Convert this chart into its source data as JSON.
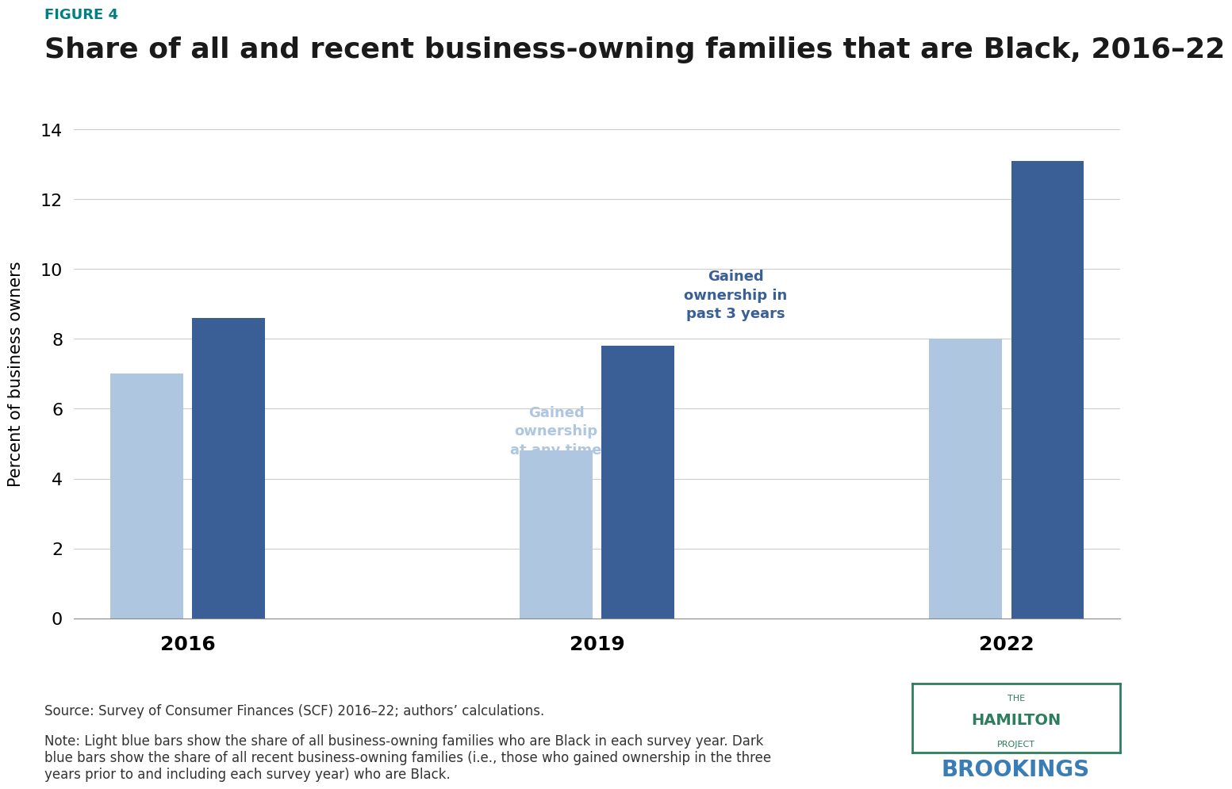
{
  "figure_label": "FIGURE 4",
  "title": "Share of all and recent business-owning families that are Black, 2016–22",
  "ylabel": "Percent of business owners",
  "years": [
    2016,
    2019,
    2022
  ],
  "light_blue_values": [
    7.0,
    4.8,
    8.0
  ],
  "dark_blue_values": [
    8.6,
    7.8,
    13.1
  ],
  "light_blue_color": "#aec6e0",
  "dark_blue_color": "#3a5f96",
  "ylim": [
    0,
    14
  ],
  "yticks": [
    0,
    2,
    4,
    6,
    8,
    10,
    12,
    14
  ],
  "annotation_light": "Gained\nownership\nat any time",
  "annotation_dark": "Gained\nownership in\npast 3 years",
  "source_text": "Source: Survey of Consumer Finances (SCF) 2016–22; authors’ calculations.",
  "note_text": "Note: Light blue bars show the share of all business-owning families who are Black in each survey year. Dark\nblue bars show the share of all recent business-owning families (i.e., those who gained ownership in the three\nyears prior to and including each survey year) who are Black.",
  "background_color": "#ffffff",
  "figure_label_color": "#008080",
  "annotation_light_color": "#aec6e0",
  "annotation_dark_color": "#3a5f96",
  "hamilton_color": "#2e7d5e",
  "brookings_color": "#3a7cb5"
}
